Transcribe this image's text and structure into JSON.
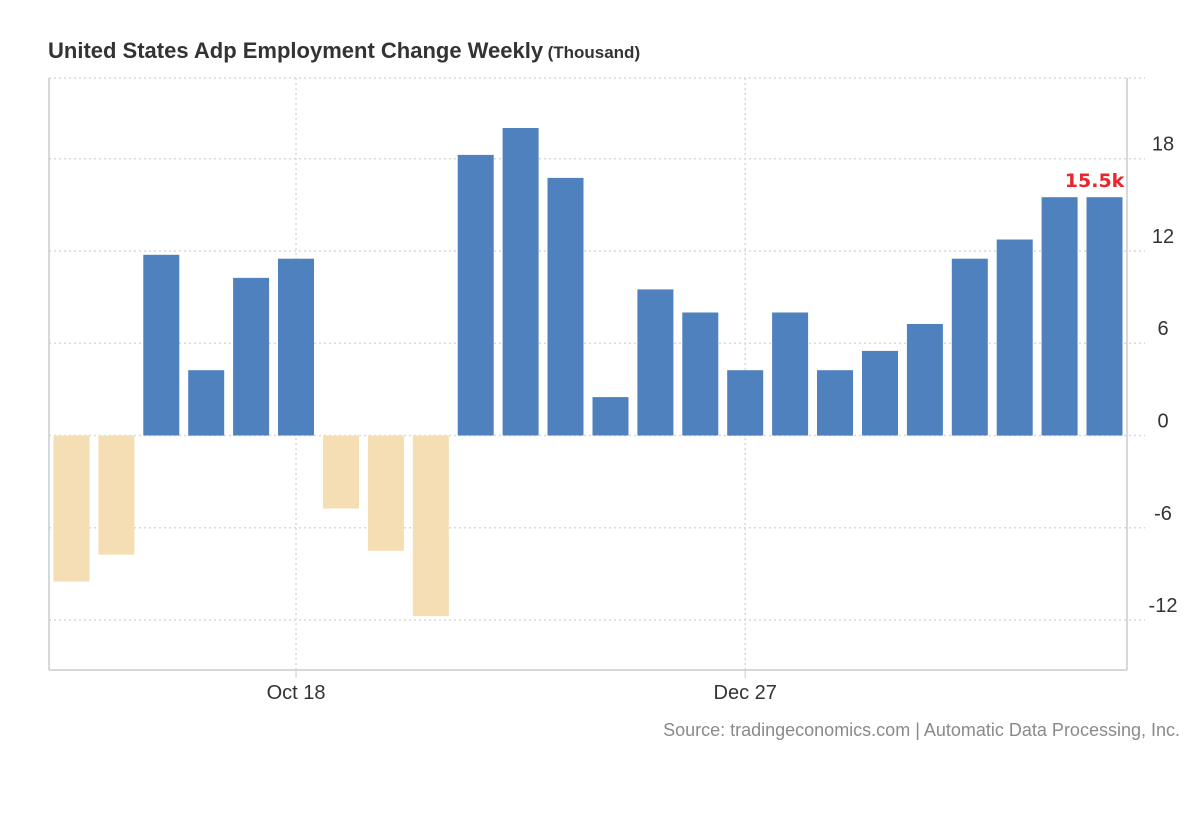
{
  "chart_data": {
    "type": "bar",
    "title": "United States Adp Employment Change Weekly",
    "unit": "(Thousand)",
    "source": "Source: tradingeconomics.com | Automatic Data Processing, Inc.",
    "values": [
      -9.5,
      -7.75,
      11.75,
      4.25,
      10.25,
      11.5,
      -4.75,
      -7.5,
      -11.75,
      18.25,
      20,
      16.75,
      2.5,
      9.5,
      8,
      4.25,
      8,
      4.25,
      5.5,
      7.25,
      11.5,
      12.75,
      15.5,
      15.5
    ],
    "x_ticks": [
      {
        "label": "Oct 18",
        "index": 5.5
      },
      {
        "label": "Dec 27",
        "index": 15.5
      }
    ],
    "y_ticks": [
      18,
      12,
      6,
      0,
      -6,
      -12
    ],
    "ylim": [
      -15.25,
      23.25
    ],
    "last_value_label": "15.5k",
    "grid": true,
    "colors": {
      "positive": "#4e81bd",
      "negative": "#f5deb3",
      "last_label": "#e8262b",
      "grid": "#d9d9d9",
      "axis": "#cccccc"
    }
  }
}
